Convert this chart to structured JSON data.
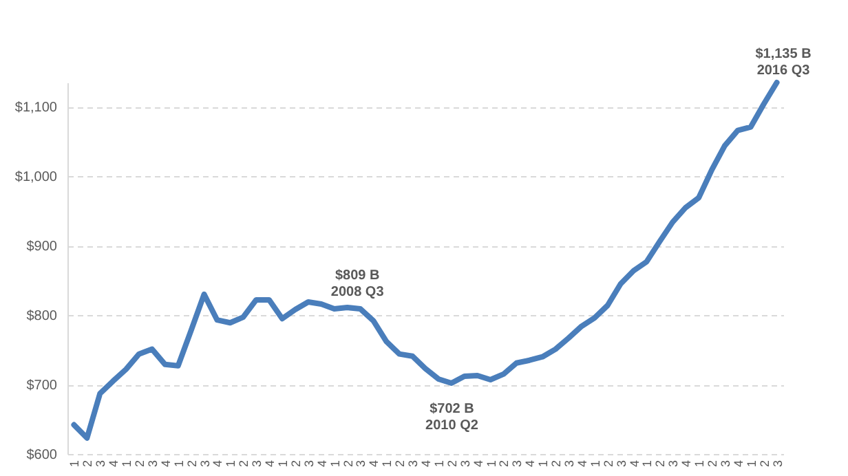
{
  "chart_data": {
    "type": "line",
    "categories": [
      "1",
      "2",
      "3",
      "4",
      "1",
      "2",
      "3",
      "4",
      "1",
      "2",
      "3",
      "4",
      "1",
      "2",
      "3",
      "4",
      "1",
      "2",
      "3",
      "4",
      "1",
      "2",
      "3",
      "4",
      "1",
      "2",
      "3",
      "4",
      "1",
      "2",
      "3",
      "4",
      "1",
      "2",
      "3",
      "4",
      "1",
      "2",
      "3",
      "4",
      "1",
      "2",
      "3",
      "4",
      "1",
      "2",
      "3",
      "4",
      "1",
      "2",
      "3",
      "4",
      "1",
      "2",
      "3"
    ],
    "series": [
      {
        "color": "#4a7ebb",
        "values": [
          642,
          623,
          687,
          705,
          722,
          744,
          751,
          729,
          727,
          778,
          830,
          793,
          789,
          797,
          822,
          822,
          795,
          808,
          819,
          816,
          809,
          811,
          809,
          792,
          762,
          744,
          741,
          723,
          708,
          702,
          712,
          713,
          707,
          715,
          731,
          735,
          740,
          751,
          767,
          784,
          796,
          814,
          845,
          864,
          877,
          906,
          934,
          955,
          969,
          1009,
          1044,
          1066,
          1071,
          1104,
          1135
        ]
      }
    ],
    "ylim": [
      600,
      1135
    ],
    "yticks": [
      {
        "value": 600,
        "label": "$600"
      },
      {
        "value": 700,
        "label": "$700"
      },
      {
        "value": 800,
        "label": "$800"
      },
      {
        "value": 900,
        "label": "$900"
      },
      {
        "value": 1000,
        "label": "$1,000"
      },
      {
        "value": 1100,
        "label": "$1,100"
      }
    ],
    "grid": "y",
    "line_style": "solid",
    "marker": "none",
    "annotations": [
      "$809 B\n2008 Q3",
      "$702 B\n2010 Q2",
      "$1,135 B\n2016 Q3"
    ]
  }
}
